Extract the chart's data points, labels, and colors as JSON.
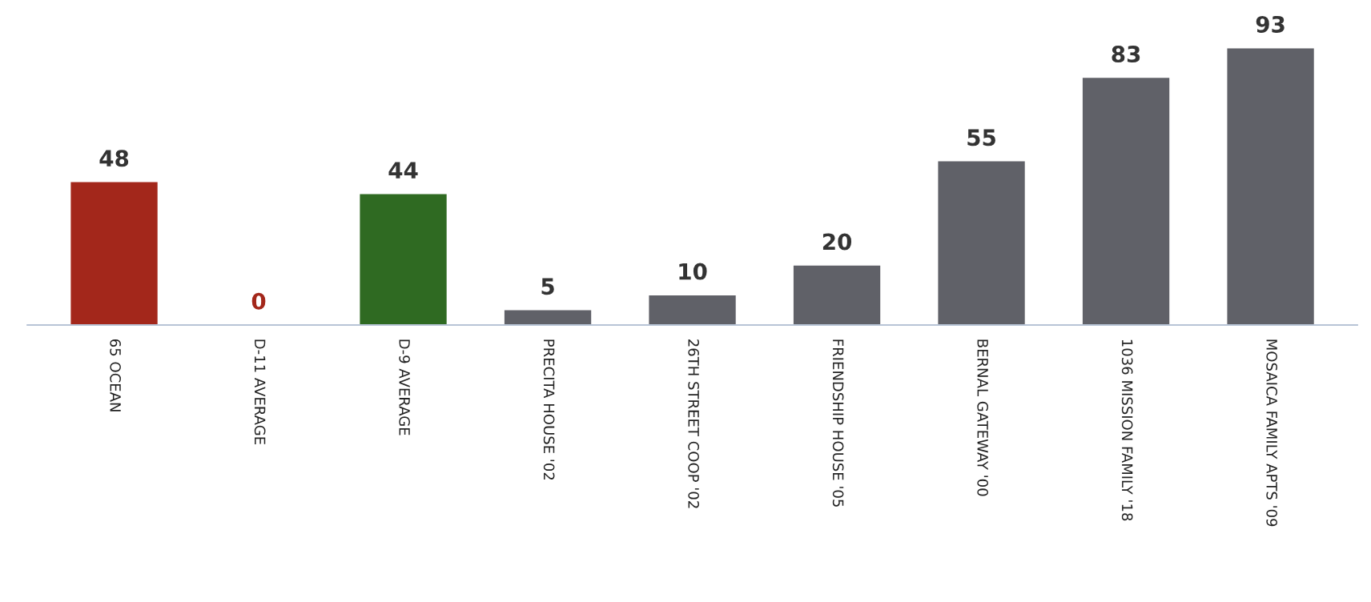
{
  "chart_data": {
    "type": "bar",
    "categories": [
      "65 OCEAN",
      "D-11 AVERAGE",
      "D-9 AVERAGE",
      "PRECITA HOUSE '02",
      "26TH STREET COOP '02",
      "FRIENDSHIP HOUSE '05",
      "BERNAL GATEWAY '00",
      "1036 MISSION FAMILY '18",
      "MOSAICA FAMILY APTS '09"
    ],
    "values": [
      48,
      0,
      44,
      5,
      10,
      20,
      55,
      83,
      93
    ],
    "colors": [
      "#a3271b",
      "#a3271b",
      "#2f6a22",
      "#606168",
      "#606168",
      "#606168",
      "#606168",
      "#606168",
      "#606168"
    ],
    "data_labels": true,
    "grid": false,
    "legend": false
  }
}
